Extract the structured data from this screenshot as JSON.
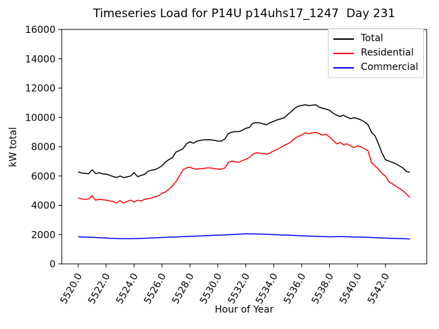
{
  "chart_data": {
    "type": "line",
    "title": "Timeseries Load for P14U p14uhs17_1247  Day 231",
    "xlabel": "Hour of Year",
    "ylabel": "kW total",
    "xlim": [
      5518.82,
      5544.95
    ],
    "ylim": [
      0,
      16000
    ],
    "grid": false,
    "xticks": [
      5520,
      5522,
      5524,
      5526,
      5528,
      5530,
      5532,
      5534,
      5536,
      5538,
      5540,
      5542
    ],
    "xtick_labels": [
      "5520.0",
      "5522.0",
      "5524.0",
      "5526.0",
      "5528.0",
      "5530.0",
      "5532.0",
      "5534.0",
      "5536.0",
      "5538.0",
      "5540.0",
      "5542.0"
    ],
    "xtick_rotation_deg": 60,
    "yticks": [
      0,
      2000,
      4000,
      6000,
      8000,
      10000,
      12000,
      14000,
      16000
    ],
    "ytick_labels": [
      "0",
      "2000",
      "4000",
      "6000",
      "8000",
      "10000",
      "12000",
      "14000",
      "16000"
    ],
    "legend": {
      "position": "upper right"
    },
    "x": [
      5520.0,
      5520.25,
      5520.5,
      5520.75,
      5521.0,
      5521.25,
      5521.5,
      5521.75,
      5522.0,
      5522.25,
      5522.5,
      5522.75,
      5523.0,
      5523.25,
      5523.5,
      5523.75,
      5524.0,
      5524.25,
      5524.5,
      5524.75,
      5525.0,
      5525.25,
      5525.5,
      5525.75,
      5526.0,
      5526.25,
      5526.5,
      5526.75,
      5527.0,
      5527.25,
      5527.5,
      5527.75,
      5528.0,
      5528.25,
      5528.5,
      5528.75,
      5529.0,
      5529.25,
      5529.5,
      5529.75,
      5530.0,
      5530.25,
      5530.5,
      5530.75,
      5531.0,
      5531.25,
      5531.5,
      5531.75,
      5532.0,
      5532.25,
      5532.5,
      5532.75,
      5533.0,
      5533.25,
      5533.5,
      5533.75,
      5534.0,
      5534.25,
      5534.5,
      5534.75,
      5535.0,
      5535.25,
      5535.5,
      5535.75,
      5536.0,
      5536.25,
      5536.5,
      5536.75,
      5537.0,
      5537.25,
      5537.5,
      5537.75,
      5538.0,
      5538.25,
      5538.5,
      5538.75,
      5539.0,
      5539.25,
      5539.5,
      5539.75,
      5540.0,
      5540.25,
      5540.5,
      5540.75,
      5541.0,
      5541.25,
      5541.5,
      5541.75,
      5542.0,
      5542.25,
      5542.5,
      5542.75,
      5543.0,
      5543.25,
      5543.5,
      5543.75
    ],
    "series": [
      {
        "name": "Total",
        "color": "#000000",
        "values": [
          6280,
          6200,
          6180,
          6150,
          6420,
          6160,
          6220,
          6140,
          6130,
          6050,
          5960,
          5900,
          6000,
          5890,
          5940,
          6000,
          6230,
          5950,
          6040,
          6110,
          6320,
          6400,
          6430,
          6550,
          6700,
          6950,
          7120,
          7260,
          7630,
          7740,
          7860,
          8190,
          8340,
          8240,
          8380,
          8430,
          8470,
          8480,
          8470,
          8430,
          8390,
          8380,
          8520,
          8890,
          8990,
          9030,
          9030,
          9120,
          9260,
          9310,
          9590,
          9640,
          9630,
          9550,
          9500,
          9640,
          9730,
          9830,
          9900,
          9970,
          10200,
          10390,
          10620,
          10760,
          10810,
          10860,
          10810,
          10830,
          10860,
          10710,
          10620,
          10570,
          10480,
          10290,
          10150,
          10060,
          10150,
          10010,
          9920,
          9970,
          9920,
          9830,
          9690,
          9500,
          8980,
          8750,
          8190,
          7580,
          7110,
          7020,
          6930,
          6830,
          6690,
          6550,
          6300,
          6250
        ]
      },
      {
        "name": "Residential",
        "color": "#ff0000",
        "values": [
          4500,
          4430,
          4400,
          4430,
          4650,
          4350,
          4400,
          4380,
          4350,
          4300,
          4260,
          4160,
          4310,
          4160,
          4260,
          4350,
          4210,
          4350,
          4300,
          4400,
          4450,
          4490,
          4590,
          4650,
          4820,
          4910,
          5100,
          5330,
          5610,
          6000,
          6410,
          6550,
          6600,
          6500,
          6460,
          6500,
          6520,
          6550,
          6550,
          6500,
          6470,
          6460,
          6550,
          6920,
          7020,
          6970,
          6930,
          7060,
          7140,
          7250,
          7490,
          7580,
          7560,
          7530,
          7490,
          7580,
          7720,
          7810,
          7950,
          8090,
          8190,
          8330,
          8560,
          8700,
          8800,
          8940,
          8890,
          8940,
          8980,
          8890,
          8800,
          8840,
          8660,
          8420,
          8190,
          8280,
          8140,
          8190,
          8050,
          7950,
          8050,
          8000,
          7860,
          7720,
          6920,
          6690,
          6460,
          6180,
          5990,
          5610,
          5470,
          5290,
          5150,
          5000,
          4770,
          4540
        ]
      },
      {
        "name": "Commercial",
        "color": "#0000ff",
        "values": [
          1850,
          1840,
          1830,
          1820,
          1810,
          1800,
          1790,
          1780,
          1770,
          1750,
          1740,
          1730,
          1720,
          1720,
          1715,
          1720,
          1725,
          1730,
          1740,
          1750,
          1760,
          1770,
          1780,
          1790,
          1800,
          1810,
          1820,
          1830,
          1840,
          1850,
          1860,
          1870,
          1880,
          1890,
          1900,
          1910,
          1920,
          1930,
          1940,
          1950,
          1960,
          1970,
          1980,
          1990,
          2000,
          2010,
          2030,
          2040,
          2050,
          2050,
          2045,
          2040,
          2035,
          2030,
          2020,
          2010,
          2000,
          1990,
          1980,
          1970,
          1960,
          1950,
          1940,
          1930,
          1920,
          1910,
          1900,
          1890,
          1880,
          1870,
          1860,
          1855,
          1850,
          1850,
          1855,
          1860,
          1855,
          1850,
          1845,
          1840,
          1840,
          1830,
          1820,
          1810,
          1800,
          1790,
          1780,
          1770,
          1760,
          1750,
          1740,
          1730,
          1730,
          1720,
          1710,
          1700
        ]
      }
    ]
  }
}
